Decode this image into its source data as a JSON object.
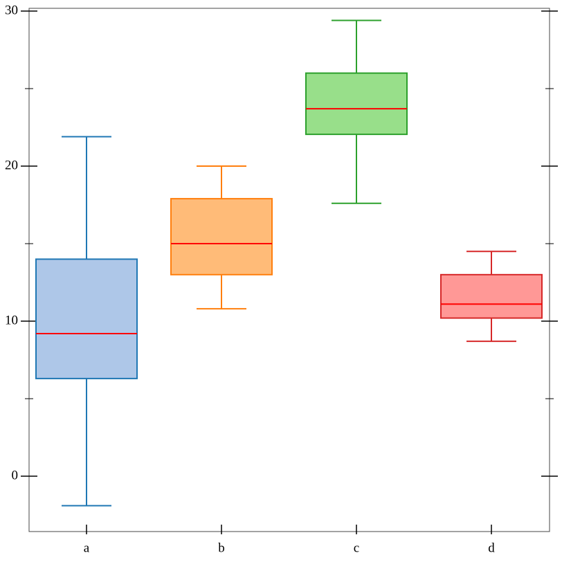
{
  "chart_data": {
    "type": "box",
    "categories": [
      "a",
      "b",
      "c",
      "d"
    ],
    "boxes": [
      {
        "low": -1.9,
        "q1": 6.3,
        "median": 9.2,
        "q3": 14.0,
        "high": 21.9,
        "color": "#1f77b4",
        "fill": "#aec7e8"
      },
      {
        "low": 10.8,
        "q1": 13.0,
        "median": 15.0,
        "q3": 17.9,
        "high": 20.0,
        "color": "#ff7f0e",
        "fill": "#ffbb78"
      },
      {
        "low": 17.6,
        "q1": 22.05,
        "median": 23.7,
        "q3": 26.0,
        "high": 29.4,
        "color": "#2ca02c",
        "fill": "#98df8a"
      },
      {
        "low": 8.7,
        "q1": 10.2,
        "median": 11.1,
        "q3": 13.0,
        "high": 14.5,
        "color": "#d62728",
        "fill": "#ff9896"
      }
    ],
    "median_color": "#ff0000",
    "ylim": [
      -3.57,
      30.18
    ],
    "yticks": [
      0,
      10,
      20,
      30
    ],
    "minor_yticks": [
      5,
      15,
      25
    ]
  }
}
